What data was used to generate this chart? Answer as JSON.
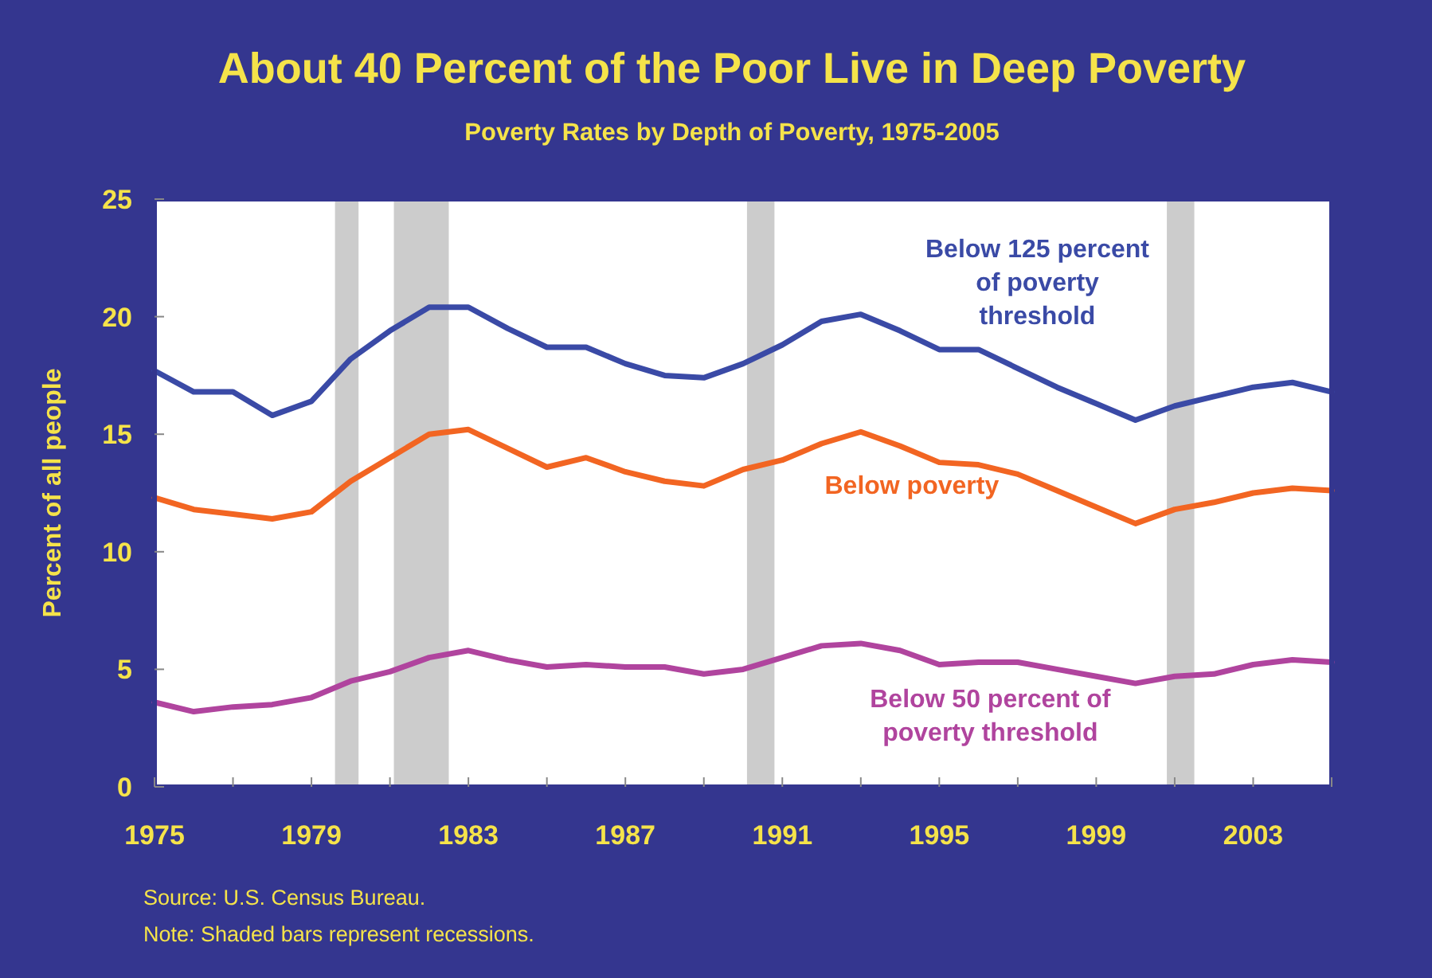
{
  "chart_data": {
    "type": "line",
    "title": "About 40 Percent of the Poor Live in Deep Poverty",
    "subtitle": "Poverty Rates by Depth of Poverty, 1975-2005",
    "ylabel": "Percent of all people",
    "x": [
      1975,
      1976,
      1977,
      1978,
      1979,
      1980,
      1981,
      1982,
      1983,
      1984,
      1985,
      1986,
      1987,
      1988,
      1989,
      1990,
      1991,
      1992,
      1993,
      1994,
      1995,
      1996,
      1997,
      1998,
      1999,
      2000,
      2001,
      2002,
      2003,
      2004,
      2005
    ],
    "series": [
      {
        "name": "Below 125 percent of poverty threshold",
        "color": "#3a4aa6",
        "values": [
          17.7,
          16.8,
          16.8,
          15.8,
          16.4,
          18.2,
          19.4,
          20.4,
          20.4,
          19.5,
          18.7,
          18.7,
          18.0,
          17.5,
          17.4,
          18.0,
          18.8,
          19.8,
          20.1,
          19.4,
          18.6,
          18.6,
          17.8,
          17.0,
          16.3,
          15.6,
          16.2,
          16.6,
          17.0,
          17.2,
          16.8
        ]
      },
      {
        "name": "Below poverty",
        "color": "#f26522",
        "values": [
          12.3,
          11.8,
          11.6,
          11.4,
          11.7,
          13.0,
          14.0,
          15.0,
          15.2,
          14.4,
          13.6,
          14.0,
          13.4,
          13.0,
          12.8,
          13.5,
          13.9,
          14.6,
          15.1,
          14.5,
          13.8,
          13.7,
          13.3,
          12.6,
          11.9,
          11.2,
          11.8,
          12.1,
          12.5,
          12.7,
          12.6
        ]
      },
      {
        "name": "Below 50 percent of poverty threshold",
        "color": "#b0449e",
        "values": [
          3.6,
          3.2,
          3.4,
          3.5,
          3.8,
          4.5,
          4.9,
          5.5,
          5.8,
          5.4,
          5.1,
          5.2,
          5.1,
          5.1,
          4.8,
          5.0,
          5.5,
          6.0,
          6.1,
          5.8,
          5.2,
          5.3,
          5.3,
          5.0,
          4.7,
          4.4,
          4.7,
          4.8,
          5.2,
          5.4,
          5.3
        ]
      }
    ],
    "xlim": [
      1975,
      2005
    ],
    "xticks": [
      1975,
      {
        "value": 1977,
        "label": null
      },
      1979,
      {
        "value": 1981,
        "label": null
      },
      1983,
      {
        "value": 1985,
        "label": null
      },
      1987,
      {
        "value": 1989,
        "label": null
      },
      1991,
      {
        "value": 1993,
        "label": null
      },
      1995,
      {
        "value": 1997,
        "label": null
      },
      1999,
      {
        "value": 2001,
        "label": null
      },
      2003,
      {
        "value": 2005,
        "label": null
      }
    ],
    "ylim": [
      0,
      25
    ],
    "yticks": [
      0,
      5,
      10,
      15,
      20,
      25
    ],
    "bands": [
      {
        "axis": "x",
        "from": 1979.6,
        "to": 1980.2,
        "color": "#cccccc"
      },
      {
        "axis": "x",
        "from": 1981.1,
        "to": 1982.5,
        "color": "#cccccc"
      },
      {
        "axis": "x",
        "from": 1990.1,
        "to": 1990.8,
        "color": "#cccccc"
      },
      {
        "axis": "x",
        "from": 2000.8,
        "to": 2001.5,
        "color": "#cccccc"
      }
    ],
    "annotations": [
      "Source: U.S. Census Bureau.",
      "Note: Shaded bars represent recessions."
    ],
    "grid": false,
    "marker": "none",
    "line_style": "solid"
  }
}
